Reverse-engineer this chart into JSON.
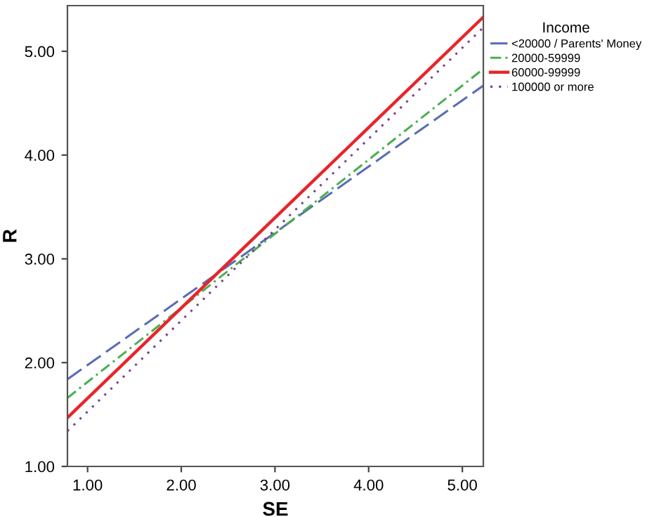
{
  "chart_data": {
    "type": "line",
    "xlabel": "SE",
    "ylabel": "R",
    "legend_title": "Income",
    "legend": "top right",
    "grid": false,
    "marker": "none",
    "xlim": [
      0.785,
      5.224
    ],
    "ylim": [
      1.0,
      5.44
    ],
    "xticks": [
      {
        "value": 1,
        "label": "1.00"
      },
      {
        "value": 2,
        "label": "2.00"
      },
      {
        "value": 3,
        "label": "3.00"
      },
      {
        "value": 4,
        "label": "4.00"
      },
      {
        "value": 5,
        "label": "5.00"
      }
    ],
    "yticks": [
      {
        "value": 1,
        "label": "1.00"
      },
      {
        "value": 2,
        "label": "2.00"
      },
      {
        "value": 3,
        "label": "3.00"
      },
      {
        "value": 4,
        "label": "4.00"
      },
      {
        "value": 5,
        "label": "5.00"
      }
    ],
    "x": [
      0.785,
      5.224
    ],
    "series": [
      {
        "name": "<20000 / Parents' Money",
        "color": "#5b6cb4",
        "line_style": "dashed",
        "values": [
          1.84,
          4.67
        ]
      },
      {
        "name": "20000-59999",
        "color": "#4caf50",
        "line_style": "dashdot",
        "values": [
          1.66,
          4.83
        ]
      },
      {
        "name": "60000-99999",
        "color": "#e8252b",
        "line_style": "solid",
        "values": [
          1.47,
          5.33
        ]
      },
      {
        "name": "100000 or more",
        "color": "#7b3f8f",
        "line_style": "dotted",
        "values": [
          1.34,
          5.23
        ]
      }
    ]
  }
}
